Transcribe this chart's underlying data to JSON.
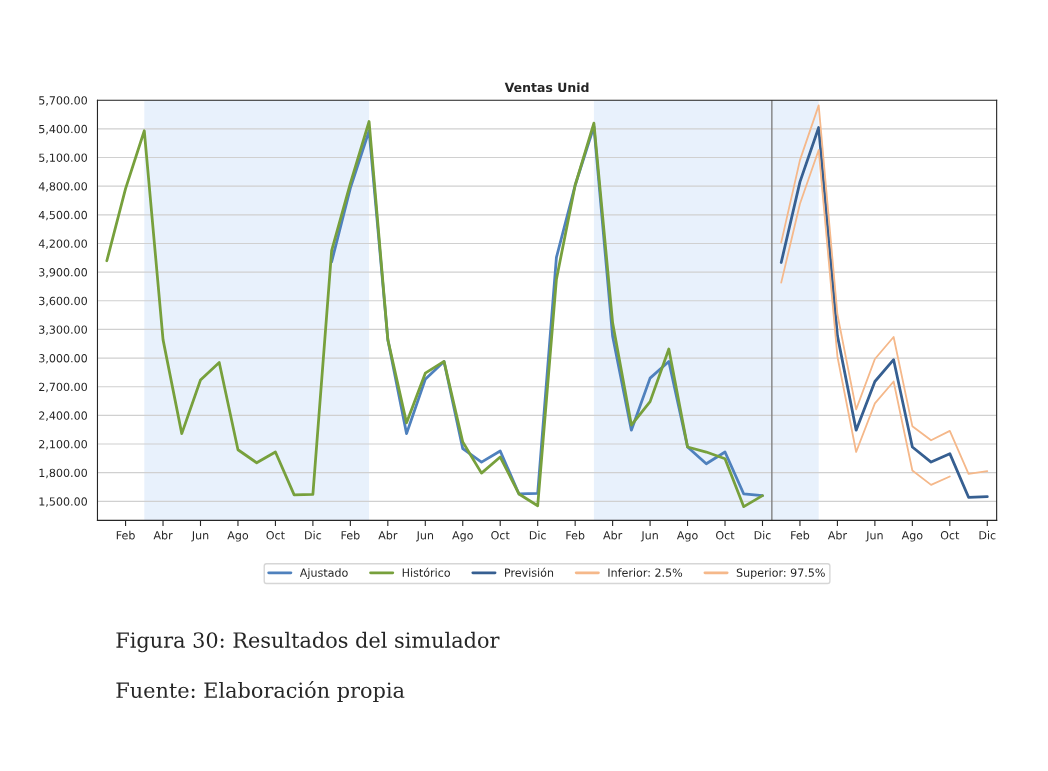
{
  "chart_data": {
    "type": "line",
    "title": "Ventas Unid",
    "categories": [
      null,
      "Feb",
      null,
      "Abr",
      null,
      "Jun",
      null,
      "Ago",
      null,
      "Oct",
      null,
      "Dic",
      null,
      "Feb",
      null,
      "Abr",
      null,
      "Jun",
      null,
      "Ago",
      null,
      "Oct",
      null,
      "Dic",
      null,
      "Feb",
      null,
      "Abr",
      null,
      "Jun",
      null,
      "Ago",
      null,
      "Oct",
      null,
      "Dic",
      null,
      "Feb",
      null,
      "Abr",
      null,
      "Jun",
      null,
      "Ago",
      null,
      "Oct",
      null,
      "Dic"
    ],
    "series": [
      {
        "name": "Ajustado",
        "color": "#4f81bd",
        "values": [
          null,
          null,
          null,
          null,
          null,
          null,
          null,
          null,
          null,
          null,
          null,
          null,
          4008,
          4780,
          5380,
          3193,
          2209,
          2779,
          2965,
          2051,
          1911,
          2027,
          1577,
          1583,
          4054,
          4810,
          5425,
          3228,
          2245,
          2790,
          2965,
          2069,
          1893,
          2016,
          1577,
          1560,
          null,
          null,
          null,
          null,
          null,
          null,
          null,
          null,
          null,
          null,
          null,
          null
        ]
      },
      {
        "name": "Histórico",
        "color": "#77a03c",
        "values": [
          4019,
          4775,
          5380,
          3193,
          2209,
          2771,
          2954,
          2040,
          1904,
          2016,
          1567,
          1573,
          4124,
          4830,
          5477,
          3193,
          2322,
          2842,
          2965,
          2121,
          1795,
          1964,
          1577,
          1454,
          3826,
          4810,
          5460,
          3369,
          2298,
          2544,
          3095,
          2069,
          2016,
          1946,
          1444,
          1560,
          null,
          null,
          null,
          null,
          null,
          null,
          null,
          null,
          null,
          null,
          null,
          null
        ]
      },
      {
        "name": "Previsión",
        "color": "#365f91",
        "values": [
          null,
          null,
          null,
          null,
          null,
          null,
          null,
          null,
          null,
          null,
          null,
          null,
          null,
          null,
          null,
          null,
          null,
          null,
          null,
          null,
          null,
          null,
          null,
          null,
          null,
          null,
          null,
          null,
          null,
          null,
          null,
          null,
          null,
          null,
          null,
          null,
          4001,
          4845,
          5414,
          3235,
          2245,
          2755,
          2983,
          2069,
          1911,
          1999,
          1542,
          1549
        ]
      },
      {
        "name": "Inferior: 2.5%",
        "color": "#f5b88a",
        "values": [
          null,
          null,
          null,
          null,
          null,
          null,
          null,
          null,
          null,
          null,
          null,
          null,
          null,
          null,
          null,
          null,
          null,
          null,
          null,
          null,
          null,
          null,
          null,
          null,
          null,
          null,
          null,
          null,
          null,
          null,
          null,
          null,
          null,
          null,
          null,
          null,
          3790,
          4616,
          5179,
          3017,
          2017,
          2526,
          2755,
          1823,
          1672,
          1760,
          null,
          null
        ]
      },
      {
        "name": "Superior: 97.5%",
        "color": "#f5b88a",
        "values": [
          null,
          null,
          null,
          null,
          null,
          null,
          null,
          null,
          null,
          null,
          null,
          null,
          null,
          null,
          null,
          null,
          null,
          null,
          null,
          null,
          null,
          null,
          null,
          null,
          null,
          null,
          null,
          null,
          null,
          null,
          null,
          null,
          null,
          null,
          null,
          null,
          4212,
          5073,
          5646,
          3456,
          2463,
          2990,
          3221,
          2287,
          2139,
          2238,
          1788,
          1816
        ]
      }
    ],
    "ylim": [
      1300,
      5700
    ],
    "yticks": [
      {
        "value": 1500,
        "label": "1,500.00"
      },
      {
        "value": 1800,
        "label": "1,800.00"
      },
      {
        "value": 2100,
        "label": "2,100.00"
      },
      {
        "value": 2400,
        "label": "2,400.00"
      },
      {
        "value": 2700,
        "label": "2,700.00"
      },
      {
        "value": 3000,
        "label": "3,000.00"
      },
      {
        "value": 3300,
        "label": "3,300.00"
      },
      {
        "value": 3600,
        "label": "3,600.00"
      },
      {
        "value": 3900,
        "label": "3,900.00"
      },
      {
        "value": 4200,
        "label": "4,200.00"
      },
      {
        "value": 4500,
        "label": "4,500.00"
      },
      {
        "value": 4800,
        "label": "4,800.00"
      },
      {
        "value": 5100,
        "label": "5,100.00"
      },
      {
        "value": 5400,
        "label": "5,400.00"
      },
      {
        "value": 5700,
        "label": "5,700.00"
      }
    ],
    "grid": "y",
    "legend": "bottom",
    "annotations": [
      "Figura 30: Resultados del simulador",
      "Fuente: Elaboración propia"
    ]
  }
}
